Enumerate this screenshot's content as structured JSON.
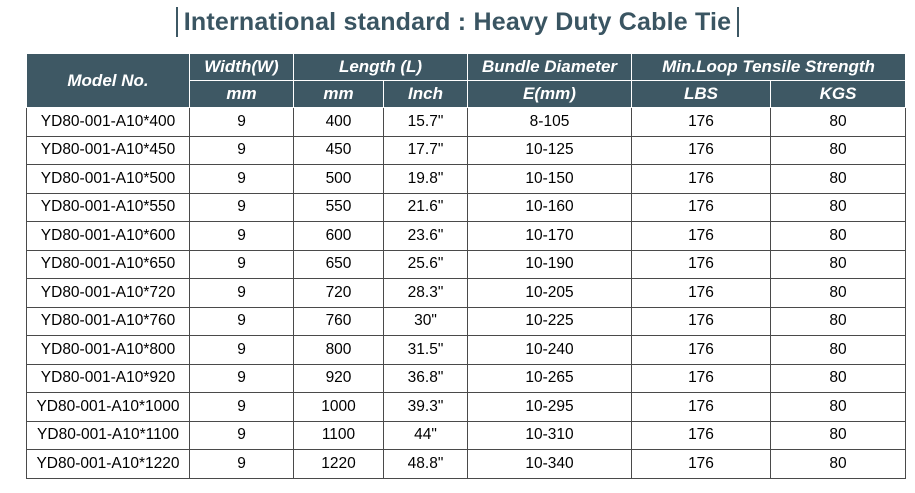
{
  "title": "International standard : Heavy Duty Cable Tie",
  "headers": {
    "model": "Model No.",
    "width": "Width(W)",
    "length": "Length (L)",
    "bundle": "Bundle Diameter",
    "tensile": "Min.Loop Tensile Strength",
    "width_unit": "mm",
    "length_mm": "mm",
    "length_inch": "Inch",
    "bundle_unit": "E(mm)",
    "lbs": "LBS",
    "kgs": "KGS"
  },
  "rows": [
    {
      "model": "YD80-001-A10*400",
      "width": "9",
      "mm": "400",
      "inch": "15.7\"",
      "bundle": "8-105",
      "lbs": "176",
      "kgs": "80"
    },
    {
      "model": "YD80-001-A10*450",
      "width": "9",
      "mm": "450",
      "inch": "17.7\"",
      "bundle": "10-125",
      "lbs": "176",
      "kgs": "80"
    },
    {
      "model": "YD80-001-A10*500",
      "width": "9",
      "mm": "500",
      "inch": "19.8\"",
      "bundle": "10-150",
      "lbs": "176",
      "kgs": "80"
    },
    {
      "model": "YD80-001-A10*550",
      "width": "9",
      "mm": "550",
      "inch": "21.6\"",
      "bundle": "10-160",
      "lbs": "176",
      "kgs": "80"
    },
    {
      "model": "YD80-001-A10*600",
      "width": "9",
      "mm": "600",
      "inch": "23.6\"",
      "bundle": "10-170",
      "lbs": "176",
      "kgs": "80"
    },
    {
      "model": "YD80-001-A10*650",
      "width": "9",
      "mm": "650",
      "inch": "25.6\"",
      "bundle": "10-190",
      "lbs": "176",
      "kgs": "80"
    },
    {
      "model": "YD80-001-A10*720",
      "width": "9",
      "mm": "720",
      "inch": "28.3\"",
      "bundle": "10-205",
      "lbs": "176",
      "kgs": "80"
    },
    {
      "model": "YD80-001-A10*760",
      "width": "9",
      "mm": "760",
      "inch": "30\"",
      "bundle": "10-225",
      "lbs": "176",
      "kgs": "80"
    },
    {
      "model": "YD80-001-A10*800",
      "width": "9",
      "mm": "800",
      "inch": "31.5\"",
      "bundle": "10-240",
      "lbs": "176",
      "kgs": "80"
    },
    {
      "model": "YD80-001-A10*920",
      "width": "9",
      "mm": "920",
      "inch": "36.8\"",
      "bundle": "10-265",
      "lbs": "176",
      "kgs": "80"
    },
    {
      "model": "YD80-001-A10*1000",
      "width": "9",
      "mm": "1000",
      "inch": "39.3\"",
      "bundle": "10-295",
      "lbs": "176",
      "kgs": "80"
    },
    {
      "model": "YD80-001-A10*1100",
      "width": "9",
      "mm": "1100",
      "inch": "44\"",
      "bundle": "10-310",
      "lbs": "176",
      "kgs": "80"
    },
    {
      "model": "YD80-001-A10*1220",
      "width": "9",
      "mm": "1220",
      "inch": "48.8\"",
      "bundle": "10-340",
      "lbs": "176",
      "kgs": "80"
    }
  ],
  "colors": {
    "header_bg": "#3e5864",
    "header_text": "#ffffff",
    "title_text": "#3a5562"
  }
}
